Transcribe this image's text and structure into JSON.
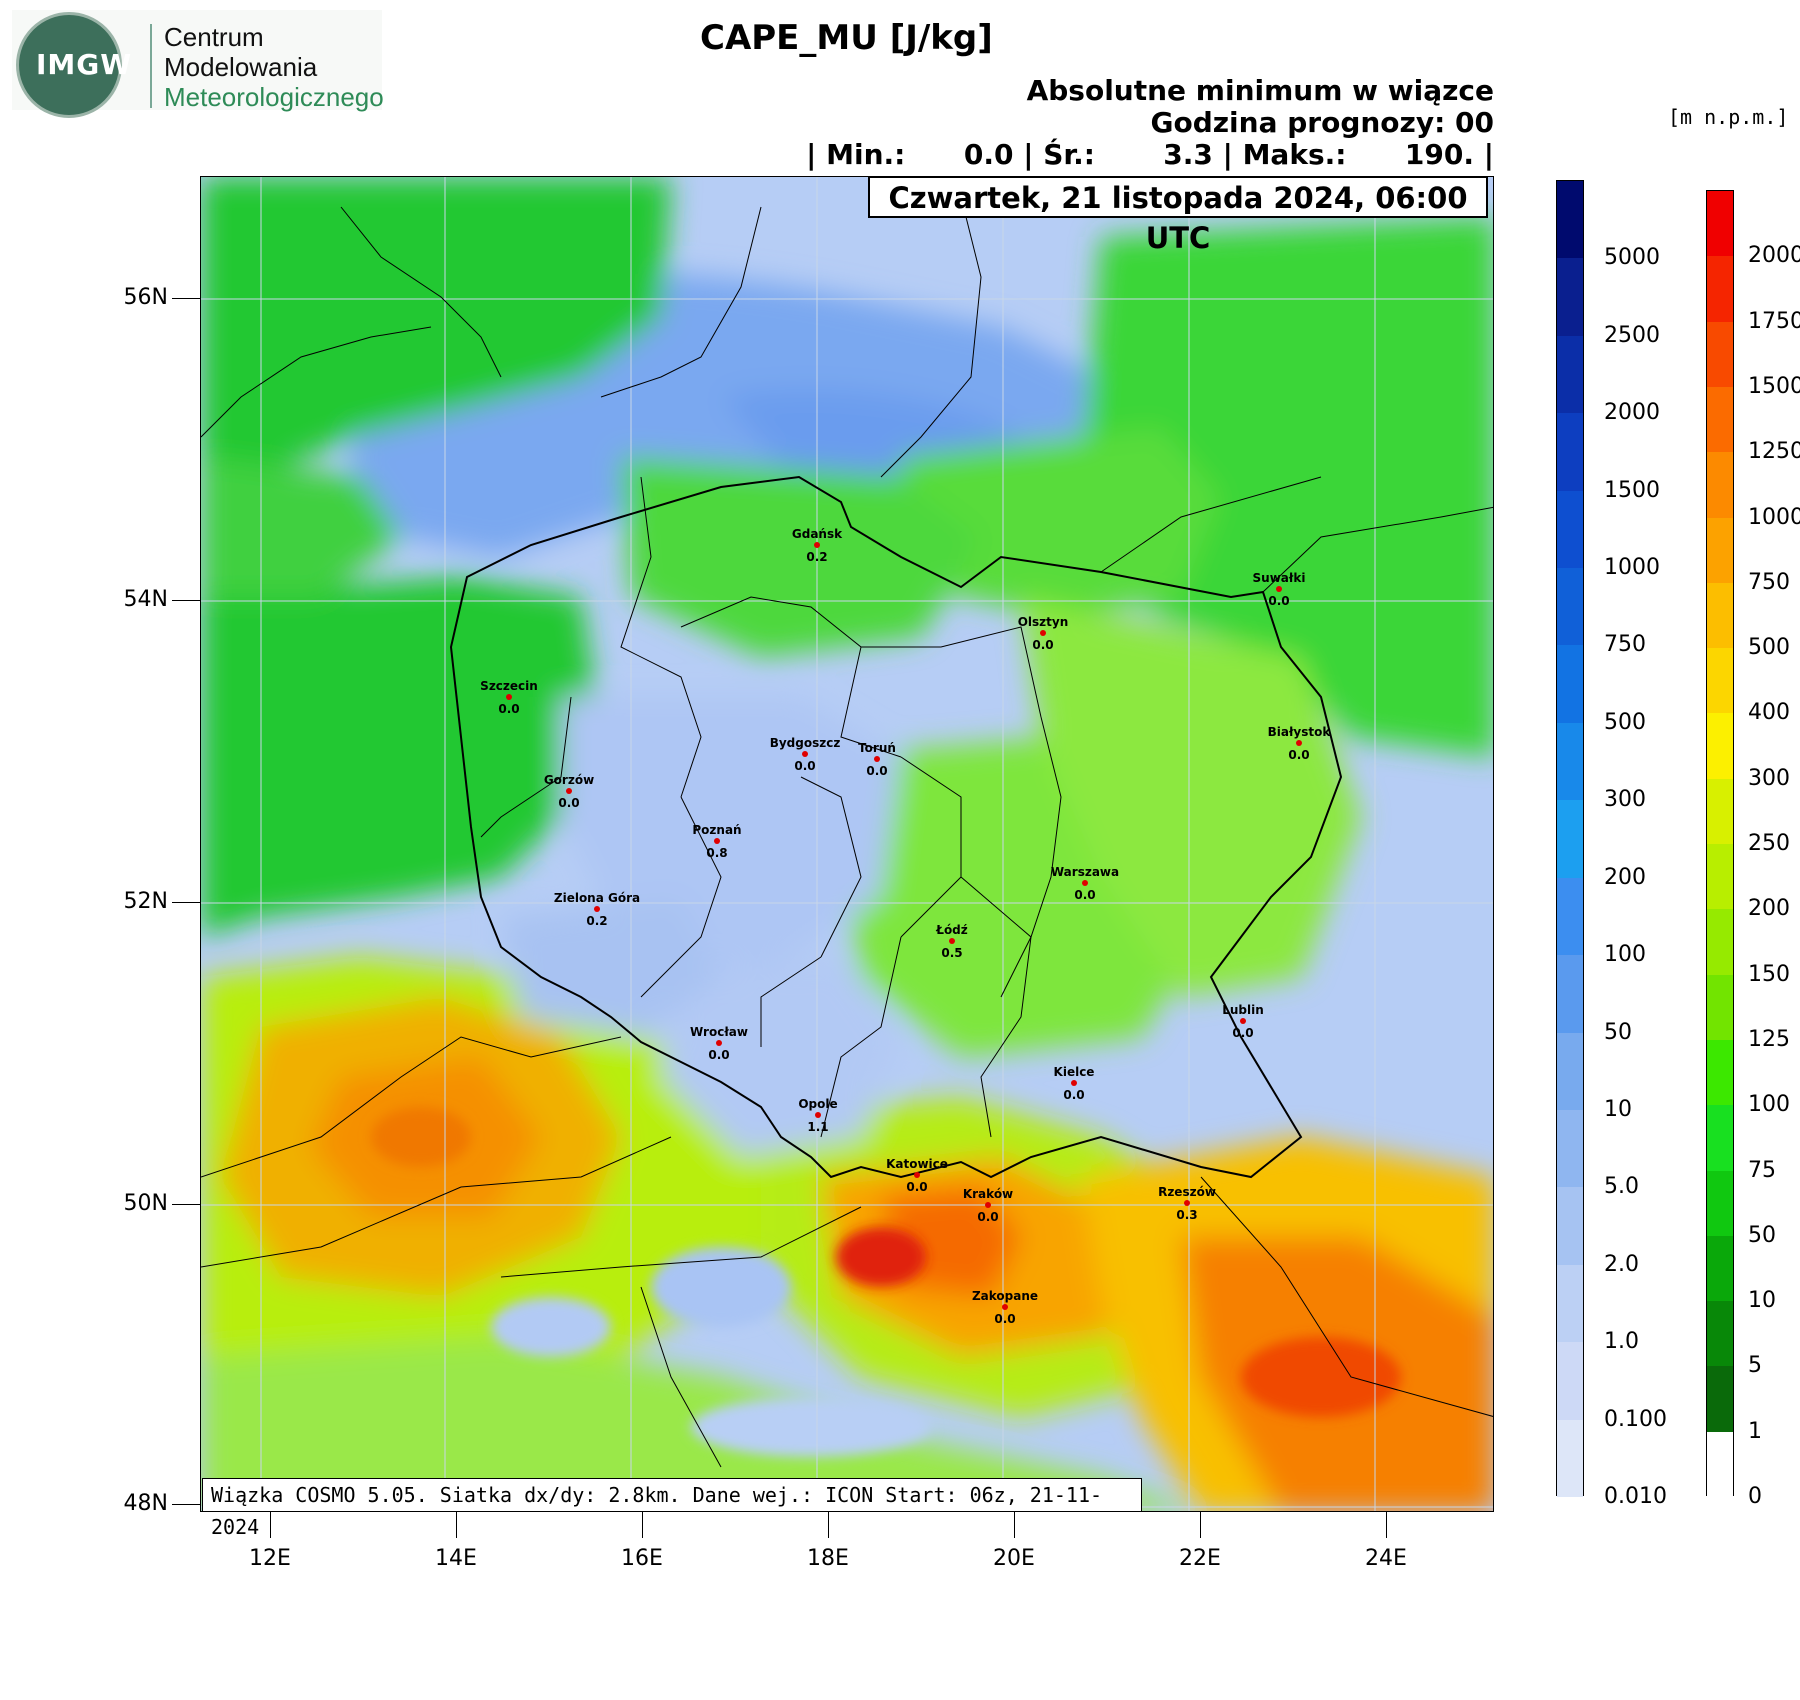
{
  "logo": {
    "text_block": "IMGW",
    "line1": "Centrum",
    "line2": "Modelowania",
    "line3": "Meteorologicznego"
  },
  "header": {
    "title": "CAPE_MU [J/kg]",
    "subtitle1": "Absolutne minimum w wiązce",
    "subtitle2": "Godzina prognozy: 00",
    "stats": "| Min.:      0.0 | Śr.:       3.3 | Maks.:      190. |",
    "date": "Czwartek, 21 listopada 2024, 06:00 UTC",
    "unit_right": "[m n.p.m.]"
  },
  "footer": "Wiązka COSMO 5.05. Siatka dx/dy: 2.8km. Dane wej.: ICON Start: 06z, 21-11-2024",
  "axes": {
    "lat_labels": [
      "56N",
      "54N",
      "52N",
      "50N",
      "48N"
    ],
    "lon_labels": [
      "12E",
      "14E",
      "16E",
      "18E",
      "20E",
      "22E",
      "24E"
    ]
  },
  "colorbar_cape": {
    "labels": [
      "5000",
      "2500",
      "2000",
      "1500",
      "1000",
      "750",
      "500",
      "300",
      "200",
      "100",
      "50",
      "10",
      "5.0",
      "2.0",
      "1.0",
      "0.100",
      "0.010"
    ],
    "colors": [
      "#000a6e",
      "#0a1f8f",
      "#0b2ea8",
      "#0d3ec0",
      "#0e4fd0",
      "#1060d8",
      "#1273e3",
      "#1889ea",
      "#1c9ff0",
      "#3c8ef0",
      "#5a9aee",
      "#78aaee",
      "#8fb6f0",
      "#a6c3f2",
      "#bcd0f4",
      "#cdd9f6",
      "#dde6f8"
    ]
  },
  "colorbar_terrain": {
    "labels": [
      "2000",
      "1750",
      "1500",
      "1250",
      "1000",
      "750",
      "500",
      "400",
      "300",
      "250",
      "200",
      "150",
      "125",
      "100",
      "75",
      "50",
      "10",
      "5",
      "1",
      "0"
    ],
    "colors": [
      "#f00000",
      "#f52500",
      "#f84a00",
      "#fb6b00",
      "#fc8a00",
      "#fca200",
      "#fcbe00",
      "#fcd600",
      "#fcf000",
      "#d8f000",
      "#b8ee00",
      "#96ea00",
      "#72e400",
      "#3ce800",
      "#18e020",
      "#10c810",
      "#0aa80a",
      "#088808",
      "#0a6a0a",
      "#ffffff"
    ]
  },
  "cities": [
    {
      "name": "Gdańsk",
      "value": "0.2"
    },
    {
      "name": "Suwałki",
      "value": "0.0"
    },
    {
      "name": "Olsztyn",
      "value": "0.0"
    },
    {
      "name": "Szczecin",
      "value": "0.0"
    },
    {
      "name": "Bydgoszcz",
      "value": "0.0"
    },
    {
      "name": "Toruń",
      "value": "0.0"
    },
    {
      "name": "Białystok",
      "value": "0.0"
    },
    {
      "name": "Gorzów",
      "value": "0.0"
    },
    {
      "name": "Poznań",
      "value": "0.8"
    },
    {
      "name": "Warszawa",
      "value": "0.0"
    },
    {
      "name": "Zielona Góra",
      "value": "0.2"
    },
    {
      "name": "Łódź",
      "value": "0.5"
    },
    {
      "name": "Lublin",
      "value": "0.0"
    },
    {
      "name": "Wrocław",
      "value": "0.0"
    },
    {
      "name": "Kielce",
      "value": "0.0"
    },
    {
      "name": "Opole",
      "value": "1.1"
    },
    {
      "name": "Katowice",
      "value": "0.0"
    },
    {
      "name": "Kraków",
      "value": "0.0"
    },
    {
      "name": "Rzeszów",
      "value": "0.3"
    },
    {
      "name": "Zakopane",
      "value": "0.0"
    }
  ]
}
